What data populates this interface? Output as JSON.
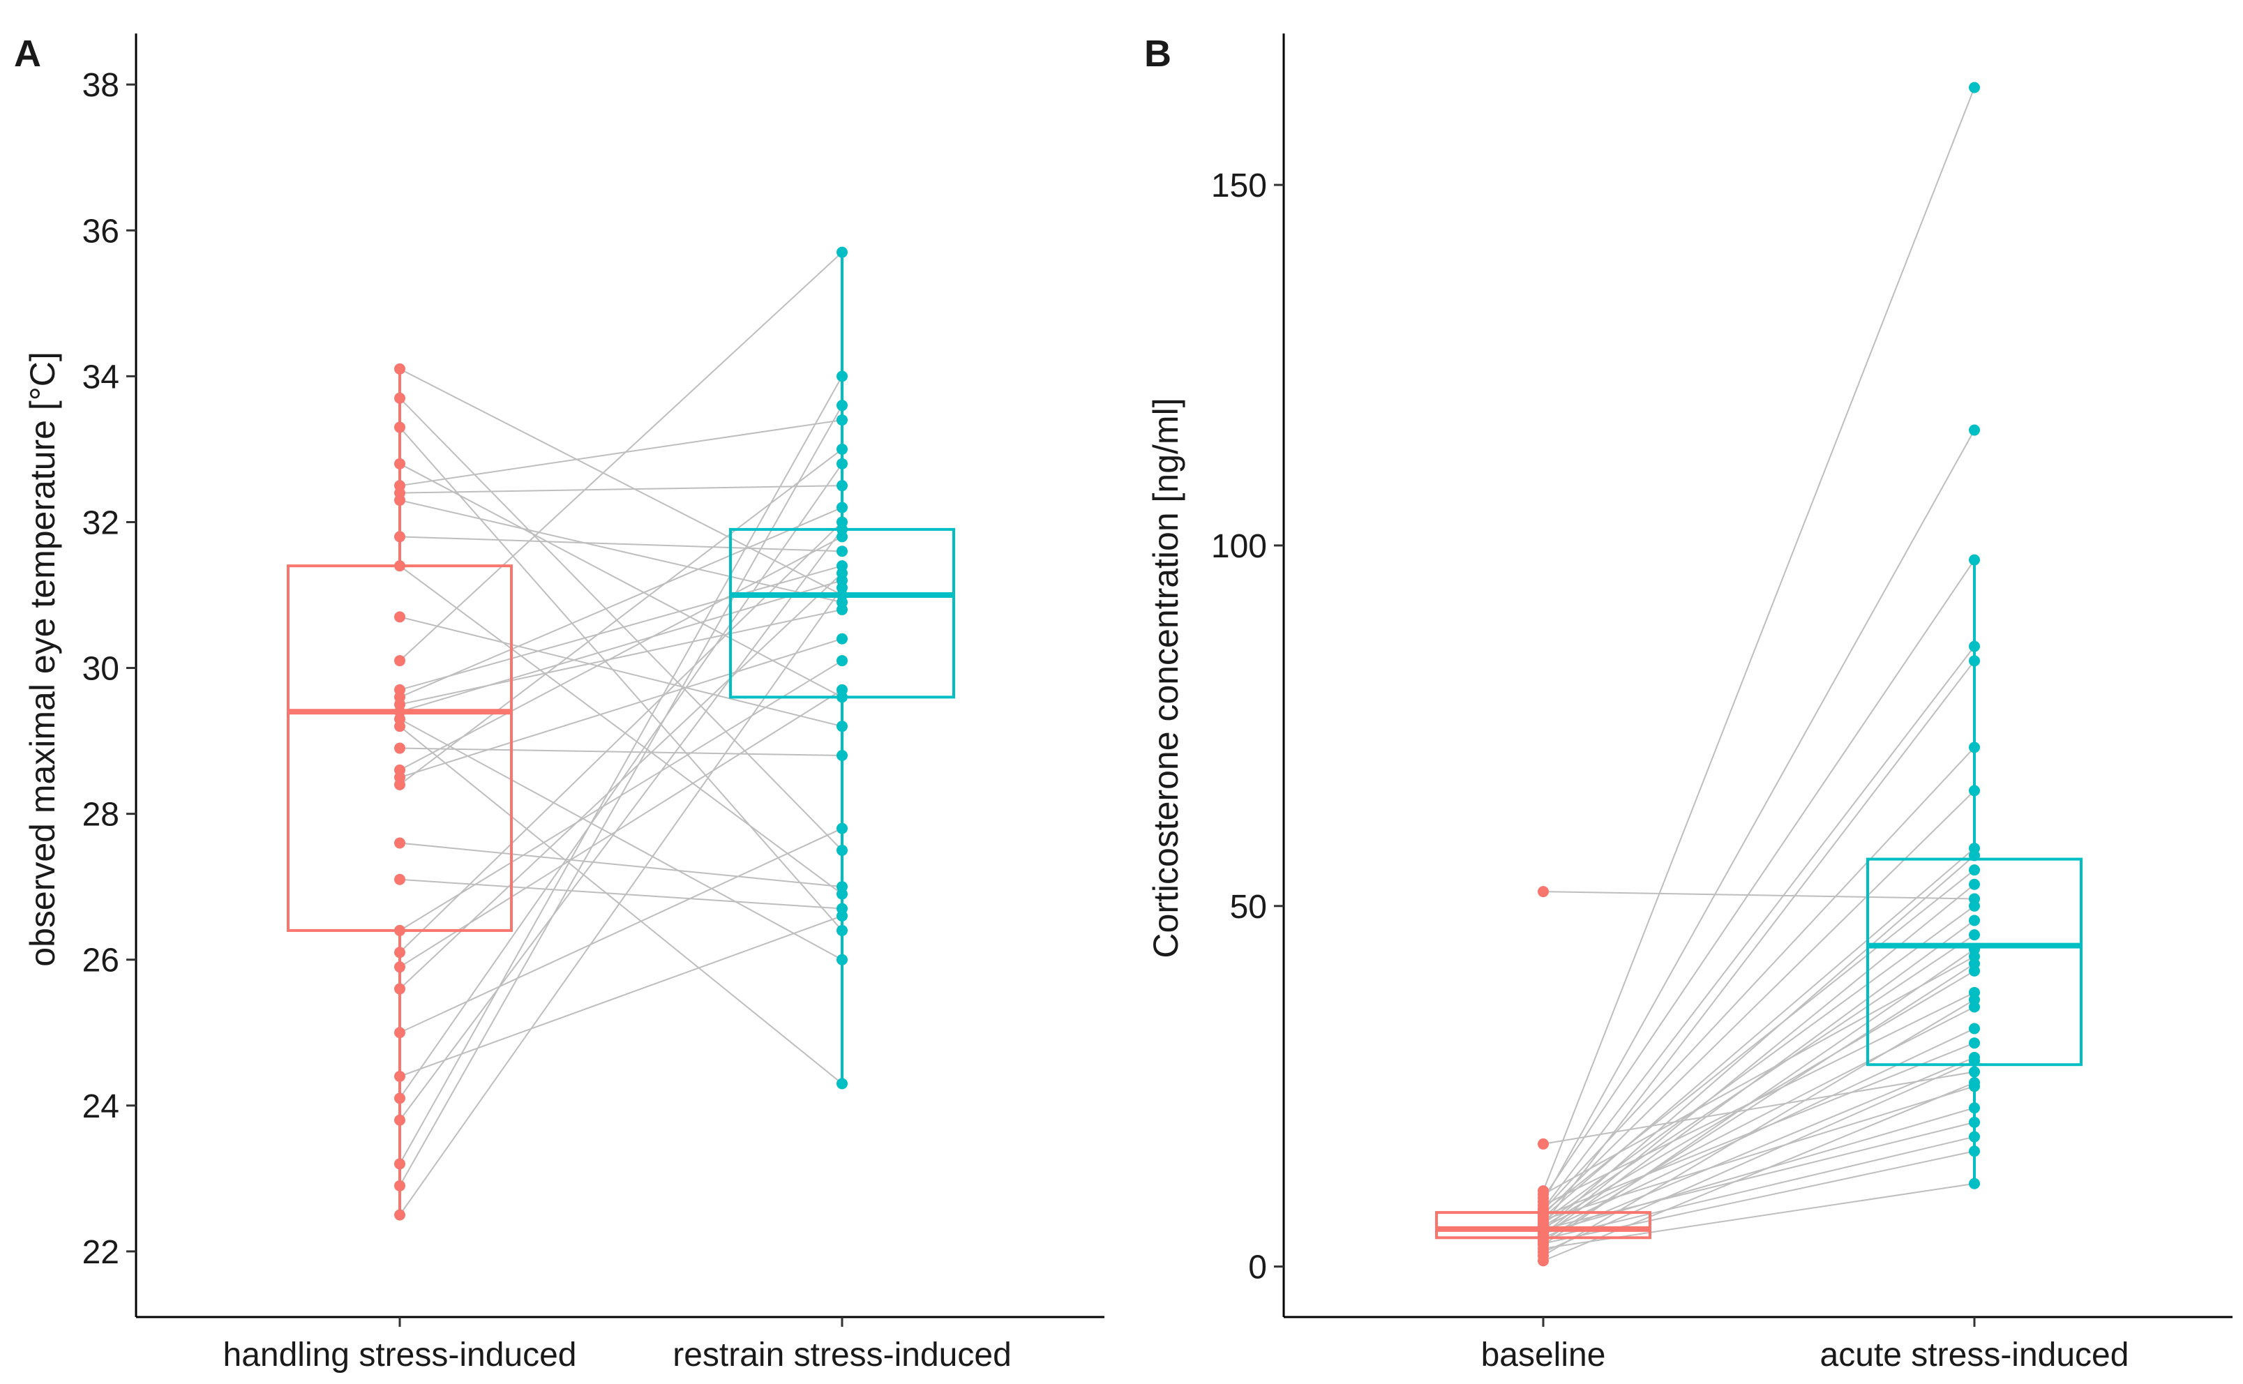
{
  "chart_data": [
    {
      "panel": "A",
      "type": "box-with-paired-points",
      "ylabel": "observed maximal eye temperature [°C]",
      "xlabel": "",
      "ylim": [
        21.1,
        38.7
      ],
      "yticks": [
        22,
        24,
        26,
        28,
        30,
        32,
        34,
        36,
        38
      ],
      "categories": [
        "handling stress-induced",
        "restrain stress-induced"
      ],
      "colors": [
        "#F8766D",
        "#00BFC4"
      ],
      "link_color": "#BEBEBE",
      "grid": false,
      "boxes": [
        {
          "name": "handling stress-induced",
          "q1": 26.4,
          "median": 29.4,
          "q3": 31.4,
          "min": 22.5,
          "max": 34.1
        },
        {
          "name": "restrain stress-induced",
          "q1": 29.6,
          "median": 31.0,
          "q3": 31.9,
          "min": 24.3,
          "max": 35.7
        }
      ],
      "pairs": [
        [
          34.1,
          31.0
        ],
        [
          33.7,
          27.5
        ],
        [
          33.3,
          26.4
        ],
        [
          32.8,
          29.6
        ],
        [
          32.5,
          33.4
        ],
        [
          32.4,
          32.5
        ],
        [
          32.3,
          30.9
        ],
        [
          31.8,
          31.6
        ],
        [
          31.4,
          26.9
        ],
        [
          30.7,
          29.2
        ],
        [
          30.1,
          35.7
        ],
        [
          29.7,
          31.4
        ],
        [
          29.6,
          32.2
        ],
        [
          29.5,
          30.8
        ],
        [
          29.4,
          31.2
        ],
        [
          29.3,
          26.0
        ],
        [
          29.2,
          24.3
        ],
        [
          28.9,
          28.8
        ],
        [
          28.6,
          31.8
        ],
        [
          28.5,
          30.4
        ],
        [
          28.4,
          33.0
        ],
        [
          27.6,
          27.0
        ],
        [
          27.1,
          26.7
        ],
        [
          26.4,
          30.1
        ],
        [
          26.1,
          32.0
        ],
        [
          25.9,
          29.7
        ],
        [
          25.6,
          31.3
        ],
        [
          25.0,
          27.8
        ],
        [
          24.4,
          26.6
        ],
        [
          24.1,
          32.8
        ],
        [
          23.8,
          31.9
        ],
        [
          23.2,
          34.0
        ],
        [
          22.9,
          33.6
        ],
        [
          22.5,
          31.1
        ]
      ]
    },
    {
      "panel": "B",
      "type": "box-with-paired-points",
      "ylabel": "Corticosterone concentration [ng/ml]",
      "xlabel": "",
      "ylim": [
        -7,
        171
      ],
      "yticks": [
        0,
        50,
        100,
        150
      ],
      "categories": [
        "baseline",
        "acute stress-induced"
      ],
      "colors": [
        "#F8766D",
        "#00BFC4"
      ],
      "link_color": "#BEBEBE",
      "grid": false,
      "boxes": [
        {
          "name": "baseline",
          "q1": 4.0,
          "median": 5.2,
          "q3": 7.5,
          "min": 0.8,
          "max": 10.5
        },
        {
          "name": "acute stress-induced",
          "q1": 28.0,
          "median": 44.5,
          "q3": 56.5,
          "min": 11.5,
          "max": 98.0
        }
      ],
      "pairs": [
        [
          52.0,
          51.0
        ],
        [
          17.0,
          27.0
        ],
        [
          10.5,
          163.5
        ],
        [
          10.0,
          43.0
        ],
        [
          9.5,
          98.0
        ],
        [
          9.0,
          116.0
        ],
        [
          8.5,
          38.0
        ],
        [
          8.0,
          86.0
        ],
        [
          7.8,
          72.0
        ],
        [
          7.5,
          55.0
        ],
        [
          7.2,
          66.0
        ],
        [
          7.0,
          31.0
        ],
        [
          6.8,
          58.0
        ],
        [
          6.5,
          25.0
        ],
        [
          6.3,
          50.0
        ],
        [
          6.0,
          46.0
        ],
        [
          5.8,
          84.0
        ],
        [
          5.6,
          41.0
        ],
        [
          5.4,
          36.0
        ],
        [
          5.2,
          20.0
        ],
        [
          5.0,
          57.0
        ],
        [
          4.8,
          33.0
        ],
        [
          4.6,
          22.0
        ],
        [
          4.4,
          53.0
        ],
        [
          4.2,
          48.0
        ],
        [
          4.0,
          29.0
        ],
        [
          3.8,
          18.0
        ],
        [
          3.5,
          42.0
        ],
        [
          3.2,
          16.0
        ],
        [
          3.0,
          44.0
        ],
        [
          2.5,
          11.5
        ],
        [
          2.0,
          28.5
        ],
        [
          1.5,
          37.0
        ],
        [
          0.8,
          25.5
        ]
      ]
    }
  ]
}
